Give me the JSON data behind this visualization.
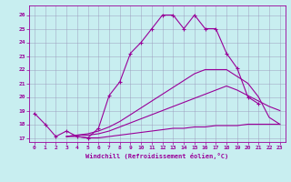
{
  "bg_color": "#c8eef0",
  "grid_color": "#9999bb",
  "line_color": "#990099",
  "xlim": [
    -0.5,
    23.5
  ],
  "ylim": [
    16.7,
    26.7
  ],
  "xticks": [
    0,
    1,
    2,
    3,
    4,
    5,
    6,
    7,
    8,
    9,
    10,
    11,
    12,
    13,
    14,
    15,
    16,
    17,
    18,
    19,
    20,
    21,
    22,
    23
  ],
  "yticks": [
    17,
    18,
    19,
    20,
    21,
    22,
    23,
    24,
    25,
    26
  ],
  "xlabel": "Windchill (Refroidissement éolien,°C)",
  "line1_x": [
    0,
    1,
    2,
    3,
    4,
    5,
    6,
    7,
    8,
    9,
    10,
    11,
    12,
    13,
    14,
    15,
    16,
    17,
    18,
    19,
    20,
    21
  ],
  "line1_y": [
    18.8,
    18.0,
    17.1,
    17.5,
    17.1,
    17.0,
    17.7,
    20.1,
    21.1,
    23.2,
    24.0,
    25.0,
    26.0,
    26.0,
    25.0,
    26.0,
    25.0,
    25.0,
    23.2,
    22.1,
    20.0,
    19.5
  ],
  "line2_x": [
    3,
    4,
    5,
    6,
    7,
    8,
    9,
    10,
    11,
    12,
    13,
    14,
    15,
    16,
    17,
    18,
    19,
    20,
    21,
    22,
    23
  ],
  "line2_y": [
    17.1,
    17.1,
    17.0,
    17.0,
    17.1,
    17.2,
    17.3,
    17.4,
    17.5,
    17.6,
    17.7,
    17.7,
    17.8,
    17.8,
    17.9,
    17.9,
    17.9,
    18.0,
    18.0,
    18.0,
    18.0
  ],
  "line3_x": [
    3,
    4,
    5,
    6,
    7,
    8,
    9,
    10,
    11,
    12,
    13,
    14,
    15,
    16,
    17,
    18,
    19,
    20,
    21,
    22,
    23
  ],
  "line3_y": [
    17.1,
    17.2,
    17.2,
    17.3,
    17.5,
    17.8,
    18.1,
    18.4,
    18.7,
    19.0,
    19.3,
    19.6,
    19.9,
    20.2,
    20.5,
    20.8,
    20.5,
    20.1,
    19.7,
    19.3,
    19.0
  ],
  "line4_x": [
    3,
    4,
    5,
    6,
    7,
    8,
    9,
    10,
    11,
    12,
    13,
    14,
    15,
    16,
    17,
    18,
    19,
    20,
    21,
    22,
    23
  ],
  "line4_y": [
    17.1,
    17.2,
    17.3,
    17.5,
    17.8,
    18.2,
    18.7,
    19.2,
    19.7,
    20.2,
    20.7,
    21.2,
    21.7,
    22.0,
    22.0,
    22.0,
    21.5,
    21.0,
    20.0,
    18.5,
    18.0
  ]
}
